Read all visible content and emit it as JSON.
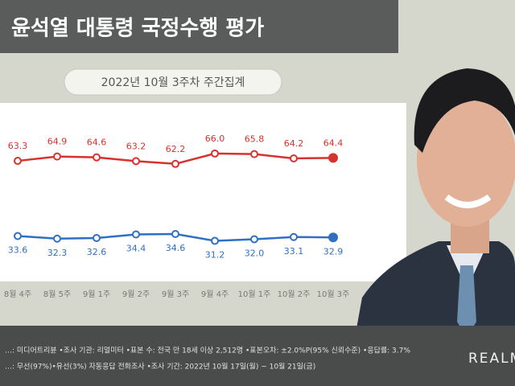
{
  "chart_data": {
    "type": "line",
    "title": "윤석열 대통령 국정수행 평가",
    "subtitle": "2022년 10월 3주차 주간집계",
    "categories": [
      "8월 4주",
      "8월 5주",
      "9월 1주",
      "9월 2주",
      "9월 3주",
      "9월 4주",
      "10월 1주",
      "10월 2주",
      "10월 3주"
    ],
    "series": [
      {
        "name": null,
        "color": "#d9322e",
        "values": [
          63.3,
          64.9,
          64.6,
          63.2,
          62.2,
          66.0,
          65.8,
          64.2,
          64.4
        ],
        "value_labels": [
          "63.3",
          "64.9",
          "64.6",
          "63.2",
          "62.2",
          "66.0",
          "65.8",
          "64.2",
          "64.4"
        ]
      },
      {
        "name": null,
        "color": "#2f6fc4",
        "axis": "y2",
        "values": [
          33.6,
          32.3,
          32.6,
          34.4,
          34.6,
          31.2,
          32.0,
          33.1,
          32.9
        ],
        "value_labels": [
          "33.6",
          "32.3",
          "32.6",
          "34.4",
          "34.6",
          "31.2",
          "32.0",
          "33.1",
          "32.9"
        ]
      }
    ],
    "ylim": [
      19,
      84
    ],
    "y2lim": [
      11,
      99
    ],
    "footer": [
      "…: 미디어트리뷴 •조사 기관: 리얼미터 •표본 수: 전국 만 18세 이상 2,512명 •표본오차: ±2.0%P(95% 신뢰수준) •응답률: 3.7%",
      "…: 무선(97%)•유선(3%) 자동응답 전화조사 •조사 기간: 2022년 10월 17일(월) ~ 10월 21일(금)"
    ],
    "logo": "REALM"
  }
}
